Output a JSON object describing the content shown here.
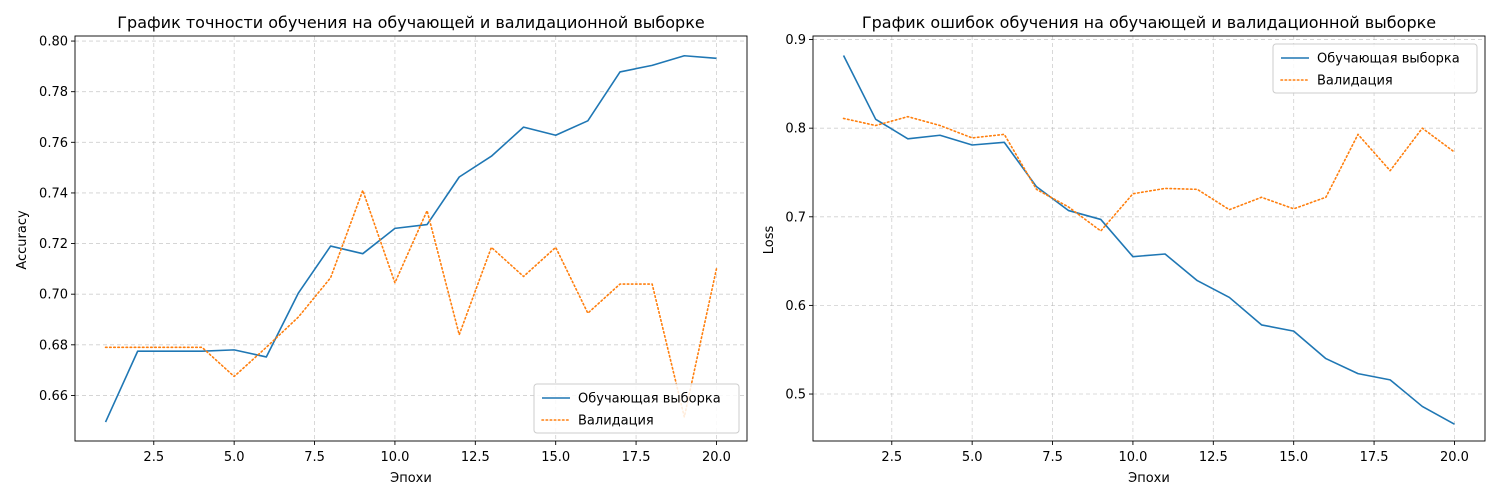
{
  "chart_data": [
    {
      "type": "line",
      "title": "График точности обучения на обучающей и валидационной выборке",
      "xlabel": "Эпохи",
      "ylabel": "Accuracy",
      "xlim": [
        0.05,
        20.95
      ],
      "ylim": [
        0.642,
        0.802
      ],
      "xticks": [
        2.5,
        5.0,
        7.5,
        10.0,
        12.5,
        15.0,
        17.5,
        20.0
      ],
      "xtick_labels": [
        "2.5",
        "5.0",
        "7.5",
        "10.0",
        "12.5",
        "15.0",
        "17.5",
        "20.0"
      ],
      "yticks": [
        0.66,
        0.68,
        0.7,
        0.72,
        0.74,
        0.76,
        0.78,
        0.8
      ],
      "ytick_labels": [
        "0.66",
        "0.68",
        "0.70",
        "0.72",
        "0.74",
        "0.76",
        "0.78",
        "0.80"
      ],
      "grid": true,
      "legend_position": "lower-right",
      "x": [
        1,
        2,
        3,
        4,
        5,
        6,
        7,
        8,
        9,
        10,
        11,
        12,
        13,
        14,
        15,
        16,
        17,
        18,
        19,
        20
      ],
      "series": [
        {
          "name": "Обучающая выборка",
          "color": "#1f77b4",
          "style": "solid",
          "values": [
            0.6495,
            0.6775,
            0.6775,
            0.6775,
            0.678,
            0.6752,
            0.7005,
            0.719,
            0.716,
            0.726,
            0.7275,
            0.7463,
            0.7545,
            0.766,
            0.7628,
            0.7685,
            0.7878,
            0.7904,
            0.7942,
            0.7932
          ]
        },
        {
          "name": "Валидация",
          "color": "#ff7f0e",
          "style": "dotted",
          "values": [
            0.679,
            0.679,
            0.679,
            0.679,
            0.6675,
            0.679,
            0.691,
            0.7065,
            0.741,
            0.7045,
            0.733,
            0.684,
            0.7185,
            0.707,
            0.7185,
            0.6925,
            0.704,
            0.704,
            0.6515,
            0.71
          ]
        }
      ]
    },
    {
      "type": "line",
      "title": "График ошибок обучения на обучающей и валидационной выборке",
      "xlabel": "Эпохи",
      "ylabel": "Loss",
      "xlim": [
        0.05,
        20.95
      ],
      "ylim": [
        0.447,
        0.904
      ],
      "xticks": [
        2.5,
        5.0,
        7.5,
        10.0,
        12.5,
        15.0,
        17.5,
        20.0
      ],
      "xtick_labels": [
        "2.5",
        "5.0",
        "7.5",
        "10.0",
        "12.5",
        "15.0",
        "17.5",
        "20.0"
      ],
      "yticks": [
        0.5,
        0.6,
        0.7,
        0.8,
        0.9
      ],
      "ytick_labels": [
        "0.5",
        "0.6",
        "0.7",
        "0.8",
        "0.9"
      ],
      "grid": true,
      "legend_position": "upper-right",
      "x": [
        1,
        2,
        3,
        4,
        5,
        6,
        7,
        8,
        9,
        10,
        11,
        12,
        13,
        14,
        15,
        16,
        17,
        18,
        19,
        20
      ],
      "series": [
        {
          "name": "Обучающая выборка",
          "color": "#1f77b4",
          "style": "solid",
          "values": [
            0.882,
            0.81,
            0.788,
            0.792,
            0.781,
            0.784,
            0.734,
            0.707,
            0.697,
            0.655,
            0.658,
            0.628,
            0.609,
            0.578,
            0.571,
            0.54,
            0.523,
            0.516,
            0.486,
            0.466
          ]
        },
        {
          "name": "Валидация",
          "color": "#ff7f0e",
          "style": "dotted",
          "values": [
            0.811,
            0.803,
            0.813,
            0.803,
            0.789,
            0.793,
            0.731,
            0.711,
            0.684,
            0.726,
            0.732,
            0.731,
            0.708,
            0.722,
            0.709,
            0.722,
            0.793,
            0.752,
            0.8,
            0.773
          ]
        }
      ]
    }
  ]
}
